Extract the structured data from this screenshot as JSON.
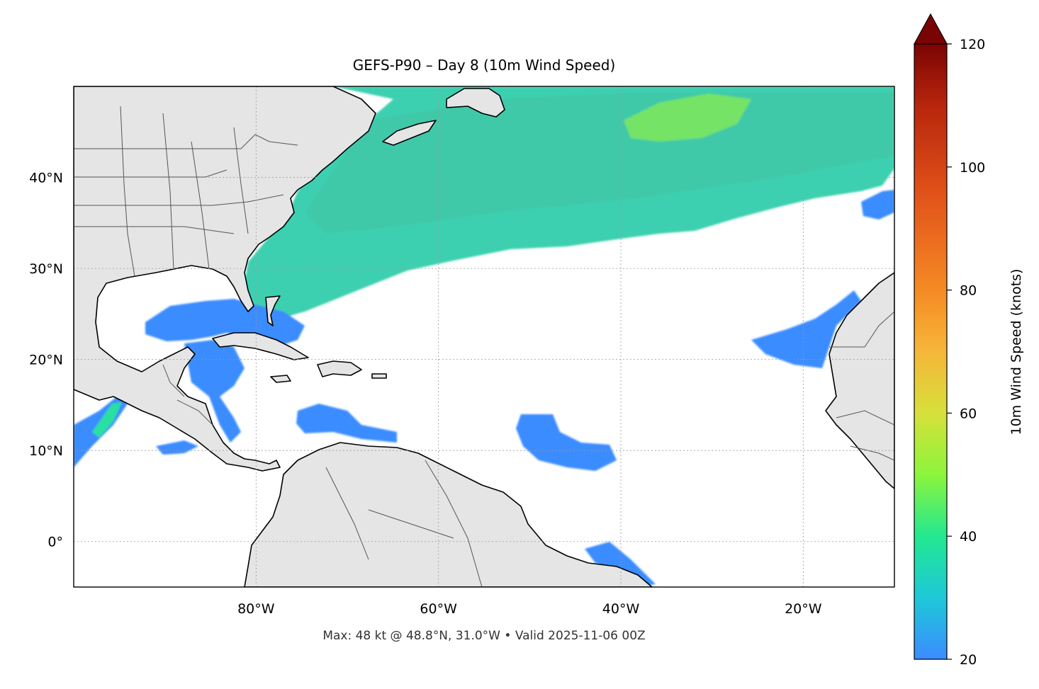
{
  "title": "GEFS-P90 – Day 8 (10m Wind Speed)",
  "footer": "Max: 48 kt @ 48.8°N, 31.0°W • Valid 2025-11-06 00Z",
  "map": {
    "extent": {
      "lon_min": -100,
      "lon_max": -10,
      "lat_min": -5,
      "lat_max": 50
    },
    "lat_ticks": [
      {
        "value": 40,
        "label": "40°N"
      },
      {
        "value": 30,
        "label": "30°N"
      },
      {
        "value": 20,
        "label": "20°N"
      },
      {
        "value": 10,
        "label": "10°N"
      },
      {
        "value": 0,
        "label": "0°"
      }
    ],
    "lon_ticks": [
      {
        "value": -80,
        "label": "80°W"
      },
      {
        "value": -60,
        "label": "60°W"
      },
      {
        "value": -40,
        "label": "40°W"
      },
      {
        "value": -20,
        "label": "20°W"
      }
    ],
    "gridlines": true,
    "colors": {
      "land": "#e5e5e5",
      "coast": "#000000",
      "border": "#555555",
      "ocean": "#ffffff"
    }
  },
  "colorbar": {
    "label": "10m Wind Speed (knots)",
    "min": 20,
    "max": 120,
    "extend": "max",
    "ticks": [
      {
        "value": 120,
        "label": "120"
      },
      {
        "value": 100,
        "label": "100"
      },
      {
        "value": 80,
        "label": "80"
      },
      {
        "value": 60,
        "label": "60"
      },
      {
        "value": 40,
        "label": "40"
      },
      {
        "value": 20,
        "label": "20"
      }
    ],
    "color_stops": [
      {
        "value": 20,
        "color": "#3b8cff"
      },
      {
        "value": 30,
        "color": "#1ec8d8"
      },
      {
        "value": 40,
        "color": "#22e890"
      },
      {
        "value": 50,
        "color": "#8cf53c"
      },
      {
        "value": 60,
        "color": "#d7e03a"
      },
      {
        "value": 70,
        "color": "#f6b63a"
      },
      {
        "value": 80,
        "color": "#f58a24"
      },
      {
        "value": 95,
        "color": "#e2541a"
      },
      {
        "value": 110,
        "color": "#b8250c"
      },
      {
        "value": 120,
        "color": "#7a0403"
      }
    ]
  },
  "max_point": {
    "speed_kt": 48,
    "lat": 48.8,
    "lon": -31.0
  }
}
